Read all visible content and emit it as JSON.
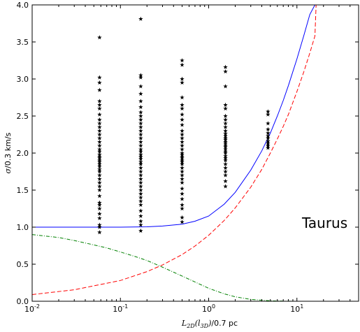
{
  "chart_data": {
    "type": "scatter",
    "title": "",
    "xlabel": "L_2D(l_3D)/0.7 pc",
    "ylabel": "σ/0.3 km/s",
    "xscale": "log",
    "xlim": [
      0.01,
      50
    ],
    "ylim": [
      0.0,
      4.0
    ],
    "grid": false,
    "legend": "none",
    "x_tick_labels": [
      {
        "value": 0.01,
        "base": "10",
        "exp": "-2"
      },
      {
        "value": 0.1,
        "base": "10",
        "exp": "-1"
      },
      {
        "value": 1,
        "base": "10",
        "exp": "0"
      },
      {
        "value": 10,
        "base": "10",
        "exp": "1"
      }
    ],
    "y_tick_labels": [
      "0.0",
      "0.5",
      "1.0",
      "1.5",
      "2.0",
      "2.5",
      "3.0",
      "3.5",
      "4.0"
    ],
    "annotation": "Taurus",
    "series": [
      {
        "kind": "scatter",
        "marker": "star",
        "color": "#000000",
        "groups": [
          {
            "x": 0.058,
            "y": [
              0.93,
              1.0,
              1.03,
              1.12,
              1.18,
              1.25,
              1.3,
              1.33,
              1.42,
              1.5,
              1.55,
              1.6,
              1.65,
              1.7,
              1.75,
              1.78,
              1.82,
              1.85,
              1.88,
              1.9,
              1.93,
              1.95,
              1.98,
              2.02,
              2.05,
              2.1,
              2.15,
              2.2,
              2.25,
              2.3,
              2.35,
              2.4,
              2.45,
              2.52,
              2.6,
              2.65,
              2.7,
              2.85,
              2.95,
              3.02,
              3.56
            ]
          },
          {
            "x": 0.17,
            "y": [
              0.95,
              1.03,
              1.08,
              1.15,
              1.22,
              1.3,
              1.35,
              1.4,
              1.45,
              1.5,
              1.55,
              1.6,
              1.65,
              1.7,
              1.75,
              1.8,
              1.85,
              1.88,
              1.92,
              1.95,
              1.98,
              2.02,
              2.05,
              2.1,
              2.15,
              2.2,
              2.25,
              2.3,
              2.35,
              2.4,
              2.45,
              2.5,
              2.55,
              2.62,
              2.7,
              2.8,
              2.9,
              3.02,
              3.05,
              3.81
            ]
          },
          {
            "x": 0.5,
            "y": [
              1.07,
              1.13,
              1.25,
              1.3,
              1.38,
              1.45,
              1.52,
              1.6,
              1.65,
              1.7,
              1.75,
              1.8,
              1.85,
              1.88,
              1.9,
              1.93,
              1.95,
              1.98,
              2.0,
              2.05,
              2.1,
              2.15,
              2.2,
              2.25,
              2.3,
              2.38,
              2.45,
              2.52,
              2.6,
              2.65,
              2.75,
              2.95,
              3.0,
              3.19,
              3.25
            ]
          },
          {
            "x": 1.55,
            "y": [
              1.55,
              1.62,
              1.7,
              1.75,
              1.8,
              1.85,
              1.9,
              1.93,
              1.96,
              2.0,
              2.02,
              2.05,
              2.08,
              2.1,
              2.13,
              2.15,
              2.18,
              2.2,
              2.23,
              2.26,
              2.3,
              2.35,
              2.4,
              2.45,
              2.5,
              2.6,
              2.65,
              2.9,
              3.1,
              3.16
            ]
          },
          {
            "x": 4.7,
            "y": [
              2.07,
              2.1,
              2.13,
              2.16,
              2.2,
              2.23,
              2.27,
              2.32,
              2.4,
              2.52,
              2.56
            ]
          }
        ]
      },
      {
        "kind": "line",
        "style": "solid",
        "color": "#0000ff",
        "x": [
          0.01,
          0.03,
          0.1,
          0.2,
          0.3,
          0.5,
          0.7,
          1.0,
          1.5,
          2.0,
          3.0,
          4.0,
          5.0,
          6.0,
          7.0,
          8.0,
          10.0,
          12.0,
          14.0,
          16.0,
          16.5
        ],
        "y": [
          1.0,
          1.0,
          1.0,
          1.005,
          1.015,
          1.04,
          1.08,
          1.15,
          1.31,
          1.47,
          1.77,
          2.03,
          2.27,
          2.5,
          2.71,
          2.91,
          3.27,
          3.59,
          3.87,
          4.0,
          4.0
        ]
      },
      {
        "kind": "line",
        "style": "dashed",
        "color": "#ff0000",
        "x": [
          0.01,
          0.03,
          0.1,
          0.2,
          0.3,
          0.5,
          0.7,
          1.0,
          1.5,
          2.0,
          3.0,
          4.0,
          5.0,
          6.0,
          7.0,
          8.0,
          10.0,
          12.0,
          14.0,
          16.0,
          16.5
        ],
        "y": [
          0.09,
          0.155,
          0.28,
          0.4,
          0.49,
          0.63,
          0.745,
          0.89,
          1.09,
          1.26,
          1.54,
          1.78,
          2.0,
          2.19,
          2.36,
          2.52,
          2.83,
          3.1,
          3.35,
          3.58,
          4.0
        ]
      },
      {
        "kind": "line",
        "style": "dashdot",
        "color": "#008000",
        "x": [
          0.01,
          0.02,
          0.03,
          0.05,
          0.07,
          0.1,
          0.15,
          0.2,
          0.3,
          0.5,
          0.7,
          1.0,
          1.5,
          2.0,
          3.0,
          5.0,
          7.0,
          10.0
        ],
        "y": [
          0.9,
          0.86,
          0.82,
          0.76,
          0.72,
          0.665,
          0.6,
          0.55,
          0.46,
          0.34,
          0.26,
          0.175,
          0.1,
          0.06,
          0.025,
          0.006,
          0.002,
          0.0
        ]
      }
    ]
  }
}
